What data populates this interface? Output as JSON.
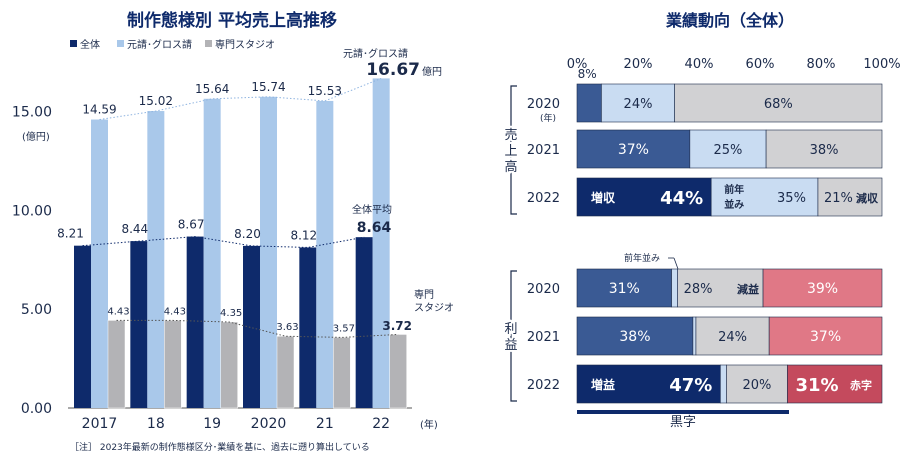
{
  "chart_data": [
    {
      "type": "bar",
      "title": "制作態様別 平均売上高推移",
      "legend": [
        "全体",
        "元請･グロス請",
        "専門スタジオ"
      ],
      "ylabel": "(億円)",
      "xunit": "(年)",
      "ylim": [
        0,
        17.5
      ],
      "yticks": [
        "0.00",
        "5.00",
        "10.00",
        "15.00"
      ],
      "categories": [
        "2017",
        "18",
        "19",
        "2020",
        "21",
        "22"
      ],
      "series": [
        {
          "name": "全体",
          "color": "#0e2a6b",
          "values": [
            8.21,
            8.44,
            8.67,
            8.2,
            8.12,
            8.64
          ],
          "labels": [
            "8.21",
            "8.44",
            "8.67",
            "8.20",
            "8.12",
            "8.64"
          ]
        },
        {
          "name": "元請･グロス請",
          "color": "#a9c8ea",
          "values": [
            14.59,
            15.02,
            15.64,
            15.74,
            15.53,
            16.67
          ],
          "labels": [
            "14.59",
            "15.02",
            "15.64",
            "15.74",
            "15.53",
            "16.67"
          ]
        },
        {
          "name": "専門スタジオ",
          "color": "#b3b3b6",
          "values": [
            4.43,
            4.43,
            4.35,
            3.63,
            3.57,
            3.72
          ],
          "labels": [
            "4.43",
            "4.43",
            "4.35",
            "3.63",
            "3.57",
            "3.72"
          ]
        }
      ],
      "annotations": {
        "overall": "全体平均",
        "contract": "元請･グロス請",
        "unit": "億円",
        "studio_1": "専門",
        "studio_2": "スタジオ"
      },
      "note": "［注］ 2023年最新の制作態様区分･業績を基に、過去に遡り算出している"
    },
    {
      "type": "bar",
      "orientation": "horizontal-stacked",
      "title": "業績動向（全体）",
      "xlim": [
        0,
        100
      ],
      "xticks": [
        "0%",
        "20%",
        "40%",
        "60%",
        "80%",
        "100%"
      ],
      "groups": [
        {
          "label": "売上高",
          "rows": [
            {
              "year": "2020",
              "year_sub": "(年)",
              "segments": [
                {
                  "value": 8,
                  "label": "8%",
                  "color": "#3a5a94"
                },
                {
                  "value": 24,
                  "label": "24%",
                  "color": "#c9dcf2"
                },
                {
                  "value": 68,
                  "label": "68%",
                  "color": "#d1d1d3"
                }
              ]
            },
            {
              "year": "2021",
              "segments": [
                {
                  "value": 37,
                  "label": "37%",
                  "color": "#3a5a94"
                },
                {
                  "value": 25,
                  "label": "25%",
                  "color": "#c9dcf2"
                },
                {
                  "value": 38,
                  "label": "38%",
                  "color": "#d1d1d3"
                }
              ]
            },
            {
              "year": "2022",
              "segments": [
                {
                  "value": 44,
                  "label": "44%",
                  "tag": "増収",
                  "color": "#0e2a6b"
                },
                {
                  "value": 35,
                  "label": "35%",
                  "tag": "前年並み",
                  "color": "#c9dcf2"
                },
                {
                  "value": 21,
                  "label": "21%",
                  "tag": "減収",
                  "color": "#d1d1d3"
                }
              ]
            }
          ]
        },
        {
          "label": "利益",
          "rows": [
            {
              "year": "2020",
              "segments": [
                {
                  "value": 31,
                  "label": "31%",
                  "color": "#3a5a94"
                },
                {
                  "value": 2,
                  "label": "",
                  "color": "#c9dcf2"
                },
                {
                  "value": 28,
                  "label": "28%",
                  "tag": "減益",
                  "color": "#d1d1d3"
                },
                {
                  "value": 39,
                  "label": "39%",
                  "color": "#e07886"
                }
              ]
            },
            {
              "year": "2021",
              "segments": [
                {
                  "value": 38,
                  "label": "38%",
                  "color": "#3a5a94"
                },
                {
                  "value": 1,
                  "label": "",
                  "color": "#c9dcf2"
                },
                {
                  "value": 24,
                  "label": "24%",
                  "color": "#d1d1d3"
                },
                {
                  "value": 37,
                  "label": "37%",
                  "color": "#e07886"
                }
              ]
            },
            {
              "year": "2022",
              "segments": [
                {
                  "value": 47,
                  "label": "47%",
                  "tag": "増益",
                  "color": "#0e2a6b"
                },
                {
                  "value": 2,
                  "label": "",
                  "color": "#c9dcf2"
                },
                {
                  "value": 20,
                  "label": "20%",
                  "color": "#d1d1d3"
                },
                {
                  "value": 31,
                  "label": "31%",
                  "tag": "赤字",
                  "color": "#c44a5d"
                }
              ]
            }
          ]
        }
      ],
      "callout": "前年並み",
      "black_label": "黒字"
    }
  ]
}
